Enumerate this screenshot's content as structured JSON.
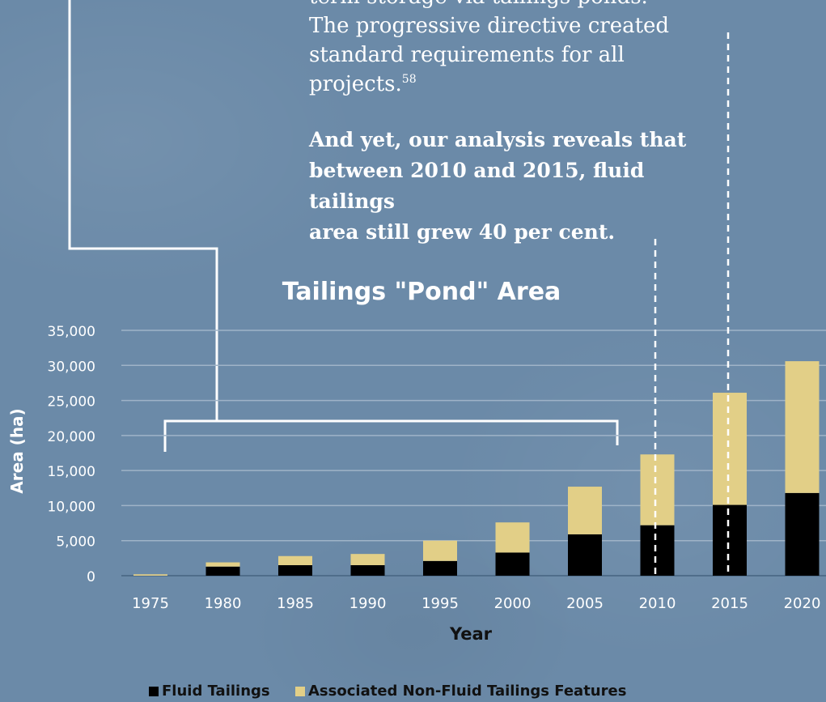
{
  "text": {
    "line0": "term storage via tailings ponds.",
    "line1": "The progressive directive created",
    "line2": "standard requirements for all",
    "line3": "projects.",
    "footnote": "58",
    "bold1": "And yet, our analysis reveals that",
    "bold2": "between 2010 and 2015, fluid tailings",
    "bold3": "area still grew 40 per cent."
  },
  "colors": {
    "fluid": "#000000",
    "non_fluid": "#e2cf87",
    "background": "#6b8aa8"
  },
  "chart_data": {
    "type": "bar",
    "title": "Tailings \"Pond\" Area",
    "xlabel": "Year",
    "ylabel": "Area (ha)",
    "categories": [
      "1975",
      "1980",
      "1985",
      "1990",
      "1995",
      "2000",
      "2005",
      "2010",
      "2015",
      "2020"
    ],
    "series": [
      {
        "name": "Fluid Tailings",
        "values": [
          0,
          1300,
          1500,
          1500,
          2100,
          3300,
          5900,
          7200,
          10100,
          11800
        ]
      },
      {
        "name": "Associated Non-Fluid Tailings Features",
        "values": [
          200,
          600,
          1300,
          1600,
          2900,
          4300,
          6800,
          10100,
          16000,
          18800
        ]
      }
    ],
    "stacked": true,
    "ylim": [
      0,
      35000
    ],
    "yticks": [
      0,
      5000,
      10000,
      15000,
      20000,
      25000,
      30000,
      35000
    ],
    "ytick_labels": [
      "0",
      "5,000",
      "10,000",
      "15,000",
      "20,000",
      "25,000",
      "30,000",
      "35,000"
    ],
    "grid": true,
    "legend_position": "bottom"
  }
}
